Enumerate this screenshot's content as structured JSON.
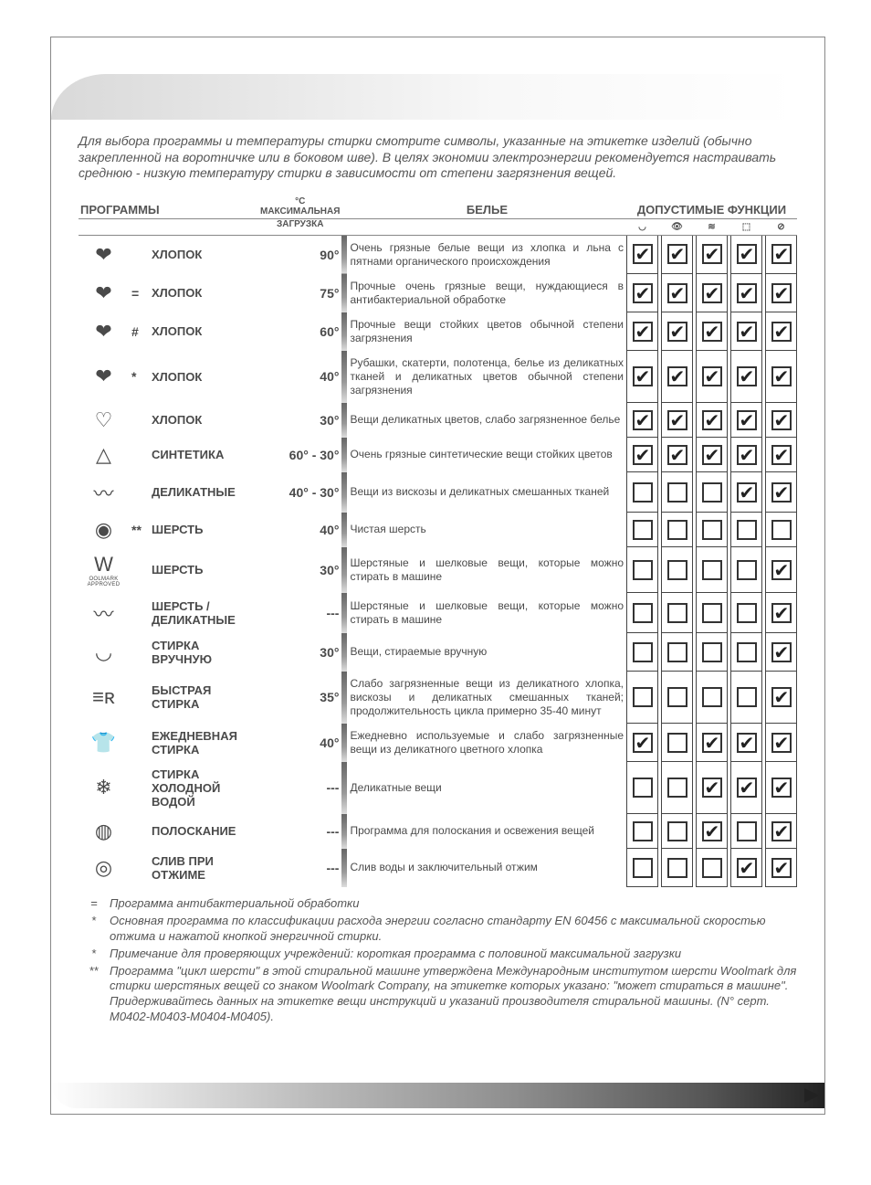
{
  "intro": "Для выбора программы и температуры стирки смотрите символы, указанные на этикетке изделий (обычно закрепленной на воротничке или в боковом шве). В целях экономии электроэнергии рекомендуется настраивать среднюю - низкую температуру стирки в зависимости от степени загрязнения вещей.",
  "headers": {
    "programs": "ПРОГРАММЫ",
    "temp_unit": "°C",
    "max_load": "МАКСИМАЛЬНАЯ",
    "max_load2": "ЗАГРУЗКА",
    "laundry": "БЕЛЬЕ",
    "allowed": "ДОПУСТИМЫЕ ФУНКЦИИ"
  },
  "func_icons": [
    "◡",
    "👁",
    "≋",
    "⬚",
    "⊘"
  ],
  "rows": [
    {
      "icon": "❤",
      "prefix": "",
      "name": "ХЛОПОК",
      "temp": "90°",
      "desc": "Очень грязные белые вещи из хлопка и льна с пятнами органического происхождения",
      "func": [
        true,
        true,
        true,
        true,
        true
      ]
    },
    {
      "icon": "❤",
      "prefix": "=",
      "name": "ХЛОПОК",
      "temp": "75°",
      "desc": "Прочные очень грязные вещи, нуждающиеся в антибактериальной обработке",
      "func": [
        true,
        true,
        true,
        true,
        true
      ]
    },
    {
      "icon": "❤",
      "prefix": "#",
      "name": "ХЛОПОК",
      "temp": "60°",
      "desc": "Прочные вещи стойких цветов обычной степени загрязнения",
      "func": [
        true,
        true,
        true,
        true,
        true
      ]
    },
    {
      "icon": "❤",
      "prefix": "*",
      "name": "ХЛОПОК",
      "temp": "40°",
      "desc": "Рубашки, скатерти, полотенца, белье из деликатных тканей и деликатных цветов обычной степени загрязнения",
      "func": [
        true,
        true,
        true,
        true,
        true
      ]
    },
    {
      "icon": "♡",
      "prefix": "",
      "name": "ХЛОПОК",
      "temp": "30°",
      "desc": "Вещи деликатных цветов, слабо загрязненное белье",
      "func": [
        true,
        true,
        true,
        true,
        true
      ]
    },
    {
      "icon": "△",
      "prefix": "",
      "name": "СИНТЕТИКА",
      "temp": "60° - 30°",
      "desc": "Очень грязные синтетические вещи стойких цветов",
      "func": [
        true,
        true,
        true,
        true,
        true
      ]
    },
    {
      "icon": "〰",
      "prefix": "",
      "name": "ДЕЛИКАТНЫЕ",
      "temp": "40° - 30°",
      "desc": "Вещи из вискозы и деликатных смешанных тканей",
      "func": [
        false,
        false,
        false,
        true,
        true
      ]
    },
    {
      "icon": "◉",
      "prefix": "**",
      "name": "ШЕРСТЬ",
      "temp": "40°",
      "desc": "Чистая шерсть",
      "func": [
        false,
        false,
        false,
        false,
        false
      ]
    },
    {
      "icon": "W",
      "prefix": "",
      "name": "ШЕРСТЬ",
      "temp": "30°",
      "desc": "Шерстяные и шелковые вещи, которые можно стирать в машине",
      "func": [
        false,
        false,
        false,
        false,
        true
      ],
      "icon_small": "OOLMARK APPROVED"
    },
    {
      "icon": "〰",
      "prefix": "",
      "name": "ШЕРСТЬ / ДЕЛИКАТНЫЕ",
      "temp": "---",
      "desc": "Шерстяные и шелковые вещи, которые можно стирать в машине",
      "func": [
        false,
        false,
        false,
        false,
        true
      ]
    },
    {
      "icon": "◡",
      "prefix": "",
      "name": "СТИРКА ВРУЧНУЮ",
      "temp": "30°",
      "desc": "Вещи, стираемые вручную",
      "func": [
        false,
        false,
        false,
        false,
        true
      ]
    },
    {
      "icon": "≡ʀ",
      "prefix": "",
      "name": "БЫСТРАЯ СТИРКА",
      "temp": "35°",
      "desc": "Слабо загрязненные вещи из деликатного хлопка, вискозы и деликатных смешанных тканей; продолжительность цикла примерно 35-40 минут",
      "func": [
        false,
        false,
        false,
        false,
        true
      ]
    },
    {
      "icon": "👕",
      "prefix": "",
      "name": "ЕЖЕДНЕВНАЯ СТИРКА",
      "temp": "40°",
      "desc": "Ежедневно используемые и слабо загрязненные вещи из деликатного цветного хлопка",
      "func": [
        true,
        false,
        true,
        true,
        true
      ]
    },
    {
      "icon": "❄",
      "prefix": "",
      "name": "СТИРКА ХОЛОДНОЙ ВОДОЙ",
      "temp": "---",
      "desc": "Деликатные вещи",
      "func": [
        false,
        false,
        true,
        true,
        true
      ]
    },
    {
      "icon": "◍",
      "prefix": "",
      "name": "ПОЛОСКАНИЕ",
      "temp": "---",
      "desc": "Программа для полоскания и освежения вещей",
      "func": [
        false,
        false,
        true,
        false,
        true
      ]
    },
    {
      "icon": "◎",
      "prefix": "",
      "name": "СЛИВ ПРИ ОТЖИМЕ",
      "temp": "---",
      "desc": "Слив воды и заключительный отжим",
      "func": [
        false,
        false,
        false,
        true,
        true
      ]
    }
  ],
  "footnotes": [
    {
      "sym": "=",
      "text": "Программа антибактериальной обработки"
    },
    {
      "sym": "*",
      "text": "Основная программа по классификации расхода энергии согласно стандарту EN 60456 с максимальной скоростью отжима и нажатой кнопкой энергичной стирки."
    },
    {
      "sym": "*",
      "text": "Примечание для проверяющих учреждений: короткая программа с половиной максимальной загрузки"
    },
    {
      "sym": "**",
      "text": "Программа \"цикл шерсти\" в этой стиральной машине утверждена Международным институтом шерсти Woolmark для стирки шерстяных вещей со знаком Woolmark Company, на этикетке которых указано: \"может стираться в машине\". Придерживайтесь данных на этикетке вещи инструкций и указаний производителя стиральной машины. (N° серт. M0402-M0403-M0404-M0405)."
    }
  ],
  "colors": {
    "text": "#4a4a4a",
    "border": "#888888",
    "divider_gradient_top": "#666666",
    "divider_gradient_bottom": "#dddddd",
    "corner_curve": "#d9d9d9",
    "checkbox_border": "#333333"
  }
}
